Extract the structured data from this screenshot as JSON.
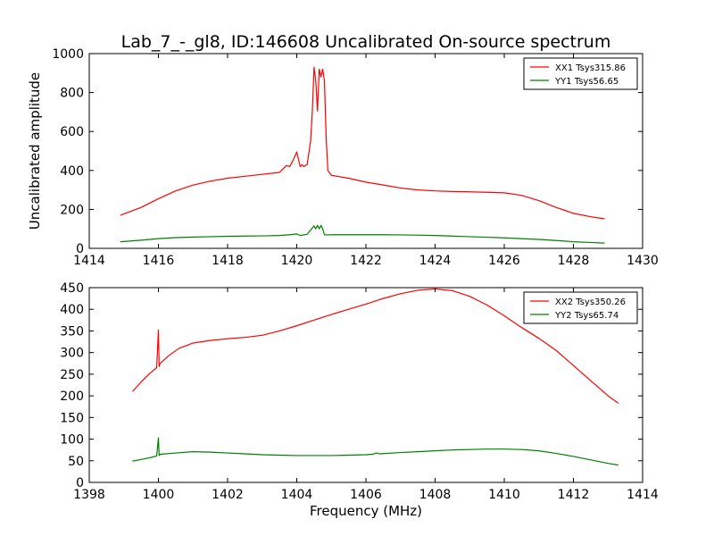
{
  "chart_data": [
    {
      "type": "line",
      "title": "Lab_7_-_gl8, ID:146608 Uncalibrated On-source spectrum",
      "xlabel": "",
      "ylabel": "Uncalibrated amplitude",
      "xlim": [
        1414,
        1430
      ],
      "ylim": [
        0,
        1000
      ],
      "xticks": [
        1414,
        1416,
        1418,
        1420,
        1422,
        1424,
        1426,
        1428,
        1430
      ],
      "yticks": [
        0,
        200,
        400,
        600,
        800,
        1000
      ],
      "grid": false,
      "legend_position": "top-right",
      "series": [
        {
          "name": "XX1 Tsys315.86",
          "color": "#ff0000",
          "x": [
            1414.9,
            1415.5,
            1416.0,
            1416.5,
            1417.0,
            1417.5,
            1418.0,
            1418.5,
            1419.0,
            1419.5,
            1419.7,
            1419.8,
            1419.9,
            1420.0,
            1420.1,
            1420.15,
            1420.2,
            1420.3,
            1420.4,
            1420.45,
            1420.5,
            1420.55,
            1420.6,
            1420.65,
            1420.7,
            1420.75,
            1420.8,
            1420.85,
            1420.9,
            1421.0,
            1421.5,
            1422.0,
            1422.5,
            1423.0,
            1423.5,
            1424.0,
            1424.5,
            1425.0,
            1425.5,
            1426.0,
            1426.5,
            1427.0,
            1427.5,
            1428.0,
            1428.5,
            1428.9
          ],
          "values": [
            170,
            210,
            255,
            295,
            325,
            345,
            360,
            370,
            380,
            390,
            425,
            420,
            455,
            495,
            420,
            430,
            420,
            430,
            550,
            700,
            930,
            860,
            705,
            920,
            880,
            920,
            860,
            570,
            400,
            375,
            360,
            340,
            325,
            310,
            300,
            295,
            292,
            290,
            288,
            285,
            272,
            245,
            210,
            180,
            162,
            152
          ]
        },
        {
          "name": "YY1 Tsys56.65",
          "color": "#008000",
          "x": [
            1414.9,
            1415.5,
            1416.0,
            1416.5,
            1417.0,
            1417.5,
            1418.0,
            1418.5,
            1419.0,
            1419.5,
            1419.8,
            1420.0,
            1420.1,
            1420.3,
            1420.5,
            1420.55,
            1420.6,
            1420.65,
            1420.7,
            1420.75,
            1420.8,
            1420.9,
            1421.0,
            1421.5,
            1422.0,
            1422.5,
            1423.0,
            1423.5,
            1424.0,
            1424.5,
            1425.0,
            1425.5,
            1426.0,
            1426.5,
            1427.0,
            1427.5,
            1428.0,
            1428.5,
            1428.9
          ],
          "values": [
            34,
            42,
            50,
            55,
            58,
            60,
            62,
            63,
            64,
            66,
            70,
            74,
            66,
            72,
            115,
            100,
            118,
            100,
            118,
            100,
            70,
            69,
            70,
            70,
            70,
            70,
            69,
            68,
            66,
            63,
            60,
            57,
            54,
            50,
            46,
            40,
            34,
            30,
            27
          ]
        }
      ]
    },
    {
      "type": "line",
      "title": "",
      "xlabel": "Frequency (MHz)",
      "ylabel": "",
      "xlim": [
        1398,
        1414
      ],
      "ylim": [
        0,
        450
      ],
      "xticks": [
        1398,
        1400,
        1402,
        1404,
        1406,
        1408,
        1410,
        1412,
        1414
      ],
      "yticks": [
        0,
        50,
        100,
        150,
        200,
        250,
        300,
        350,
        400,
        450
      ],
      "grid": false,
      "legend_position": "top-right",
      "series": [
        {
          "name": "XX2 Tsys350.26",
          "color": "#ff0000",
          "x": [
            1399.25,
            1399.5,
            1399.75,
            1399.95,
            1400.0,
            1400.02,
            1400.05,
            1400.3,
            1400.6,
            1401.0,
            1401.5,
            1402.0,
            1402.5,
            1403.0,
            1403.5,
            1404.0,
            1404.5,
            1405.0,
            1405.5,
            1406.0,
            1406.5,
            1407.0,
            1407.5,
            1408.0,
            1408.5,
            1409.0,
            1409.5,
            1410.0,
            1410.5,
            1411.0,
            1411.5,
            1412.0,
            1412.5,
            1413.0,
            1413.3
          ],
          "values": [
            210,
            232,
            252,
            265,
            352,
            268,
            275,
            293,
            310,
            322,
            328,
            332,
            335,
            340,
            350,
            362,
            375,
            388,
            400,
            412,
            425,
            436,
            444,
            447,
            443,
            430,
            410,
            385,
            358,
            333,
            305,
            270,
            235,
            200,
            183
          ]
        },
        {
          "name": "YY2 Tsys65.74",
          "color": "#008000",
          "x": [
            1399.25,
            1399.5,
            1399.75,
            1399.95,
            1400.0,
            1400.02,
            1400.05,
            1400.5,
            1401.0,
            1401.5,
            1402.0,
            1402.5,
            1403.0,
            1403.5,
            1404.0,
            1404.5,
            1405.0,
            1405.5,
            1406.0,
            1406.2,
            1406.3,
            1406.4,
            1407.0,
            1407.5,
            1408.0,
            1408.5,
            1409.0,
            1409.5,
            1410.0,
            1410.5,
            1411.0,
            1411.5,
            1412.0,
            1412.5,
            1413.0,
            1413.3
          ],
          "values": [
            49,
            53,
            57,
            61,
            103,
            62,
            65,
            68,
            71,
            70,
            68,
            66,
            64,
            63,
            62,
            62,
            62,
            63,
            64,
            65,
            68,
            66,
            69,
            71,
            73,
            75,
            76,
            77,
            77,
            76,
            73,
            67,
            60,
            52,
            44,
            40
          ]
        }
      ]
    }
  ]
}
